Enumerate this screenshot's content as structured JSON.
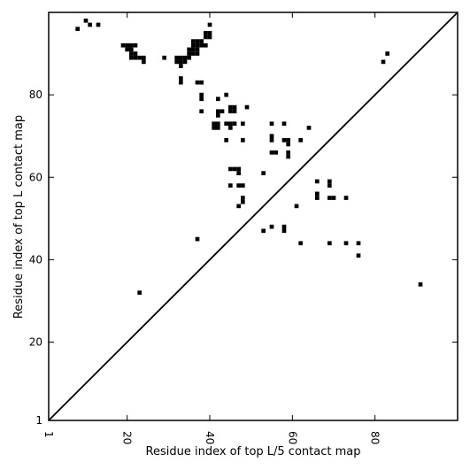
{
  "chart_data": {
    "type": "heatmap",
    "title": "",
    "xlabel": "Residue index of top L/5 contact map",
    "ylabel": "Residue index of top L contact map",
    "xlim": [
      1,
      100
    ],
    "ylim": [
      1,
      100
    ],
    "x_ticks": [
      {
        "value": 1,
        "label": "1"
      },
      {
        "value": 20,
        "label": "20"
      },
      {
        "value": 40,
        "label": "40"
      },
      {
        "value": 60,
        "label": "60"
      },
      {
        "value": 80,
        "label": "80"
      }
    ],
    "y_ticks": [
      {
        "value": 1,
        "label": "1"
      },
      {
        "value": 20,
        "label": "20"
      },
      {
        "value": 40,
        "label": "40"
      },
      {
        "value": 60,
        "label": "60"
      },
      {
        "value": 80,
        "label": "80"
      }
    ],
    "diagonal": {
      "from": [
        1,
        1
      ],
      "to": [
        100,
        100
      ]
    },
    "marker_color": "#000000",
    "upper_contacts": [
      [
        8,
        96
      ],
      [
        10,
        98
      ],
      [
        11,
        97
      ],
      [
        13,
        97
      ],
      [
        19,
        92
      ],
      [
        20,
        92
      ],
      [
        21,
        92
      ],
      [
        22,
        92
      ],
      [
        20,
        91
      ],
      [
        21,
        91
      ],
      [
        21,
        90
      ],
      [
        22,
        90
      ],
      [
        21,
        89
      ],
      [
        22,
        89
      ],
      [
        23,
        89
      ],
      [
        24,
        89
      ],
      [
        24,
        88
      ],
      [
        29,
        89
      ],
      [
        32,
        89
      ],
      [
        33,
        89
      ],
      [
        34,
        89
      ],
      [
        35,
        89
      ],
      [
        32,
        88
      ],
      [
        33,
        88
      ],
      [
        34,
        88
      ],
      [
        33,
        87
      ],
      [
        33,
        84
      ],
      [
        33,
        83
      ],
      [
        35,
        91
      ],
      [
        36,
        91
      ],
      [
        37,
        91
      ],
      [
        35,
        90
      ],
      [
        36,
        90
      ],
      [
        37,
        90
      ],
      [
        36,
        92
      ],
      [
        37,
        92
      ],
      [
        38,
        92
      ],
      [
        36,
        93
      ],
      [
        37,
        93
      ],
      [
        38,
        93
      ],
      [
        39,
        92
      ],
      [
        39,
        94
      ],
      [
        40,
        94
      ],
      [
        39,
        95
      ],
      [
        40,
        95
      ],
      [
        40,
        97
      ],
      [
        37,
        83
      ],
      [
        38,
        83
      ],
      [
        38,
        80
      ],
      [
        38,
        79
      ],
      [
        38,
        76
      ],
      [
        42,
        79
      ],
      [
        42,
        76
      ],
      [
        43,
        76
      ],
      [
        42,
        75
      ],
      [
        41,
        73
      ],
      [
        42,
        73
      ],
      [
        41,
        72
      ],
      [
        42,
        72
      ],
      [
        44,
        80
      ],
      [
        45,
        77
      ],
      [
        46,
        77
      ],
      [
        45,
        76
      ],
      [
        46,
        76
      ],
      [
        44,
        73
      ],
      [
        45,
        73
      ],
      [
        46,
        73
      ],
      [
        45,
        72
      ],
      [
        44,
        69
      ],
      [
        45,
        62
      ],
      [
        46,
        62
      ],
      [
        47,
        62
      ],
      [
        47,
        61
      ],
      [
        45,
        58
      ],
      [
        47,
        58
      ],
      [
        48,
        58
      ],
      [
        48,
        55
      ],
      [
        48,
        54
      ],
      [
        47,
        53
      ],
      [
        48,
        73
      ],
      [
        48,
        69
      ],
      [
        49,
        77
      ],
      [
        53,
        61
      ],
      [
        53,
        47
      ],
      [
        55,
        48
      ],
      [
        55,
        73
      ],
      [
        55,
        70
      ],
      [
        55,
        69
      ],
      [
        55,
        66
      ],
      [
        56,
        66
      ],
      [
        58,
        73
      ],
      [
        58,
        69
      ],
      [
        59,
        69
      ],
      [
        59,
        68
      ],
      [
        59,
        66
      ],
      [
        59,
        65
      ],
      [
        58,
        48
      ],
      [
        58,
        47
      ],
      [
        61,
        53
      ],
      [
        62,
        69
      ],
      [
        62,
        44
      ],
      [
        64,
        72
      ],
      [
        66,
        59
      ],
      [
        66,
        56
      ],
      [
        66,
        55
      ],
      [
        69,
        59
      ],
      [
        69,
        58
      ],
      [
        69,
        55
      ],
      [
        70,
        55
      ],
      [
        73,
        55
      ],
      [
        69,
        44
      ],
      [
        73,
        44
      ],
      [
        76,
        44
      ],
      [
        76,
        41
      ],
      [
        83,
        90
      ],
      [
        82,
        88
      ],
      [
        91,
        34
      ]
    ],
    "lower_contacts": [
      [
        37,
        45
      ],
      [
        23,
        32
      ]
    ]
  }
}
